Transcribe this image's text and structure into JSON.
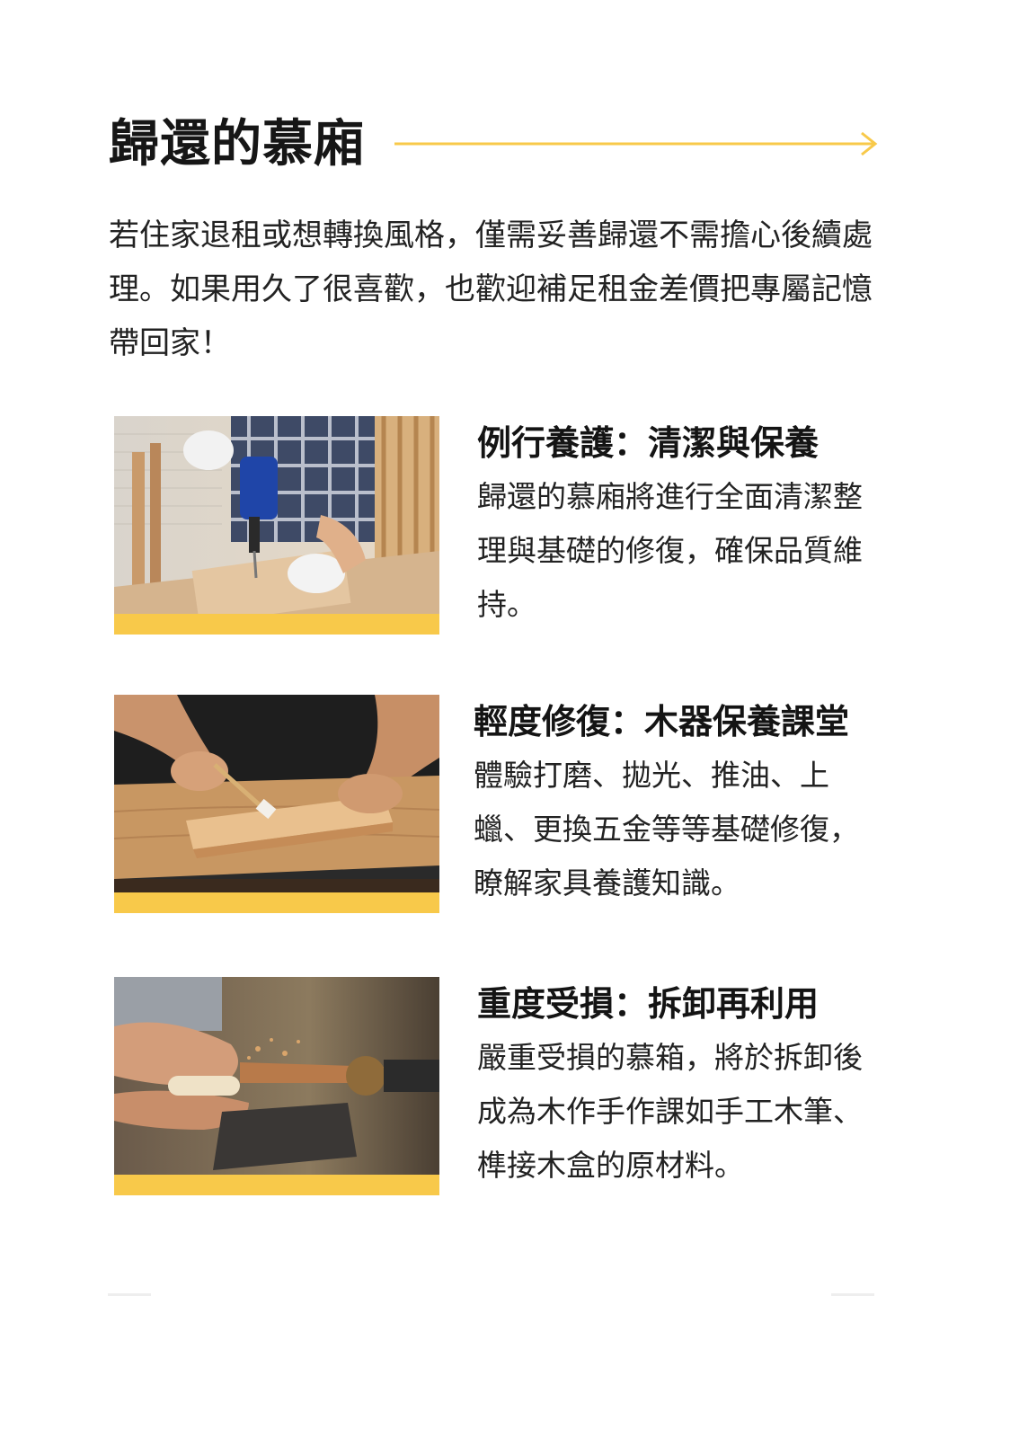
{
  "page": {
    "title": "歸還的慕廂",
    "intro": "若住家退租或想轉換風格，僅需妥善歸還不需擔心後續處理。如果用久了很喜歡，也歡迎補足租金差價把專屬記憶帶回家！",
    "accent_color": "#f8c94a"
  },
  "cards": [
    {
      "title": "例行養護：清潔與保養",
      "text": "歸還的慕廂將進行全面清潔整理與基礎的修復，確保品質維持。",
      "photo_icon": "drill-woodwork-photo"
    },
    {
      "title": "輕度修復：木器保養課堂",
      "text": "體驗打磨、拋光、推油、上蠟、更換五金等等基礎修復，瞭解家具養護知識。",
      "photo_icon": "brush-oiling-photo"
    },
    {
      "title": "重度受損：拆卸再利用",
      "text": "嚴重受損的慕箱，將於拆卸後成為木作手作課如手工木筆、榫接木盒的原材料。",
      "photo_icon": "wood-lathe-photo"
    }
  ]
}
